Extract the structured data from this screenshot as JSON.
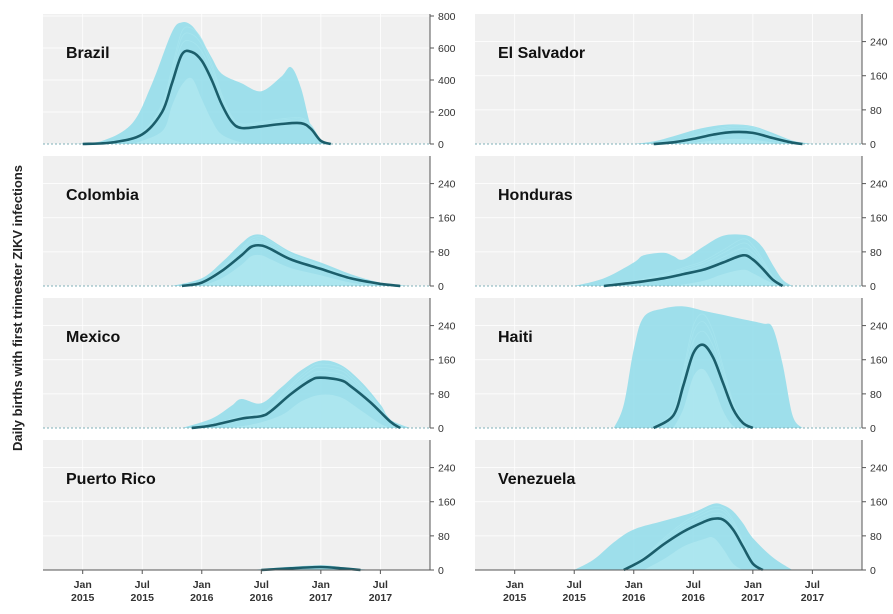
{
  "chart_data": {
    "type": "area",
    "ylabel": "Daily births with first trimester ZIKV infections",
    "x_ticks": [
      {
        "date": "2015-01",
        "line1": "Jan",
        "line2": "2015"
      },
      {
        "date": "2015-07",
        "line1": "Jul",
        "line2": "2015"
      },
      {
        "date": "2016-01",
        "line1": "Jan",
        "line2": "2016"
      },
      {
        "date": "2016-07",
        "line1": "Jul",
        "line2": "2016"
      },
      {
        "date": "2017-01",
        "line1": "Jan",
        "line2": "2017"
      },
      {
        "date": "2017-07",
        "line1": "Jul",
        "line2": "2017"
      }
    ],
    "xlim": [
      "2014-09",
      "2017-12"
    ],
    "colors": {
      "median": "#1b5e6b",
      "band": "#8fdcea",
      "inner": "#b8ebf2"
    },
    "panels": [
      {
        "title": "Brazil",
        "yticks": [
          0,
          200,
          400,
          600,
          800
        ],
        "ylim": [
          0,
          800
        ],
        "median": [
          [
            "2015-01",
            0
          ],
          [
            "2015-04",
            10
          ],
          [
            "2015-07",
            60
          ],
          [
            "2015-09",
            200
          ],
          [
            "2015-10",
            380
          ],
          [
            "2015-11",
            560
          ],
          [
            "2015-12",
            575
          ],
          [
            "2016-01",
            520
          ],
          [
            "2016-02",
            400
          ],
          [
            "2016-03",
            250
          ],
          [
            "2016-04",
            140
          ],
          [
            "2016-05",
            100
          ],
          [
            "2016-07",
            110
          ],
          [
            "2016-09",
            125
          ],
          [
            "2016-11",
            130
          ],
          [
            "2016-12",
            95
          ],
          [
            "2017-01",
            20
          ],
          [
            "2017-02",
            0
          ]
        ],
        "upper": [
          [
            "2014-12",
            0
          ],
          [
            "2015-03",
            20
          ],
          [
            "2015-06",
            130
          ],
          [
            "2015-08",
            380
          ],
          [
            "2015-10",
            700
          ],
          [
            "2015-11",
            760
          ],
          [
            "2015-12",
            740
          ],
          [
            "2016-01",
            650
          ],
          [
            "2016-02",
            540
          ],
          [
            "2016-03",
            440
          ],
          [
            "2016-05",
            380
          ],
          [
            "2016-07",
            330
          ],
          [
            "2016-09",
            420
          ],
          [
            "2016-10",
            480
          ],
          [
            "2016-11",
            350
          ],
          [
            "2016-12",
            110
          ],
          [
            "2017-01",
            10
          ],
          [
            "2017-02",
            0
          ]
        ],
        "lower": [
          [
            "2015-06",
            0
          ],
          [
            "2015-09",
            80
          ],
          [
            "2015-10",
            240
          ],
          [
            "2015-11",
            370
          ],
          [
            "2015-12",
            410
          ],
          [
            "2016-01",
            280
          ],
          [
            "2016-02",
            150
          ],
          [
            "2016-03",
            60
          ],
          [
            "2016-05",
            10
          ],
          [
            "2016-07",
            0
          ]
        ]
      },
      {
        "title": "El Salvador",
        "yticks": [
          0,
          80,
          160,
          240
        ],
        "ylim": [
          0,
          300
        ],
        "median": [
          [
            "2016-03",
            0
          ],
          [
            "2016-05",
            4
          ],
          [
            "2016-07",
            12
          ],
          [
            "2016-09",
            22
          ],
          [
            "2016-11",
            28
          ],
          [
            "2017-01",
            26
          ],
          [
            "2017-03",
            14
          ],
          [
            "2017-05",
            3
          ],
          [
            "2017-06",
            0
          ]
        ],
        "upper": [
          [
            "2016-01",
            0
          ],
          [
            "2016-03",
            6
          ],
          [
            "2016-05",
            18
          ],
          [
            "2016-07",
            32
          ],
          [
            "2016-09",
            42
          ],
          [
            "2016-11",
            46
          ],
          [
            "2017-01",
            42
          ],
          [
            "2017-03",
            26
          ],
          [
            "2017-05",
            8
          ],
          [
            "2017-07",
            0
          ]
        ],
        "lower": [
          [
            "2016-06",
            0
          ],
          [
            "2016-09",
            8
          ],
          [
            "2016-11",
            12
          ],
          [
            "2017-01",
            10
          ],
          [
            "2017-03",
            4
          ],
          [
            "2017-05",
            0
          ]
        ]
      },
      {
        "title": "Colombia",
        "yticks": [
          0,
          80,
          160,
          240
        ],
        "ylim": [
          0,
          300
        ],
        "median": [
          [
            "2015-11",
            0
          ],
          [
            "2016-01",
            8
          ],
          [
            "2016-03",
            35
          ],
          [
            "2016-05",
            72
          ],
          [
            "2016-06",
            92
          ],
          [
            "2016-07",
            95
          ],
          [
            "2016-08",
            86
          ],
          [
            "2016-10",
            62
          ],
          [
            "2017-01",
            40
          ],
          [
            "2017-04",
            18
          ],
          [
            "2017-07",
            5
          ],
          [
            "2017-09",
            0
          ]
        ],
        "upper": [
          [
            "2015-10",
            0
          ],
          [
            "2016-01",
            18
          ],
          [
            "2016-03",
            55
          ],
          [
            "2016-05",
            100
          ],
          [
            "2016-06",
            118
          ],
          [
            "2016-07",
            120
          ],
          [
            "2016-08",
            108
          ],
          [
            "2016-10",
            80
          ],
          [
            "2017-01",
            55
          ],
          [
            "2017-04",
            28
          ],
          [
            "2017-07",
            8
          ],
          [
            "2017-10",
            0
          ]
        ],
        "lower": [
          [
            "2016-01",
            0
          ],
          [
            "2016-03",
            18
          ],
          [
            "2016-05",
            50
          ],
          [
            "2016-06",
            70
          ],
          [
            "2016-07",
            72
          ],
          [
            "2016-08",
            62
          ],
          [
            "2016-10",
            42
          ],
          [
            "2017-01",
            25
          ],
          [
            "2017-04",
            8
          ],
          [
            "2017-07",
            0
          ]
        ]
      },
      {
        "title": "Honduras",
        "yticks": [
          0,
          80,
          160,
          240
        ],
        "ylim": [
          0,
          300
        ],
        "median": [
          [
            "2015-10",
            0
          ],
          [
            "2016-01",
            8
          ],
          [
            "2016-04",
            18
          ],
          [
            "2016-06",
            28
          ],
          [
            "2016-08",
            38
          ],
          [
            "2016-10",
            55
          ],
          [
            "2016-12",
            72
          ],
          [
            "2017-01",
            62
          ],
          [
            "2017-02",
            40
          ],
          [
            "2017-03",
            15
          ],
          [
            "2017-04",
            0
          ]
        ],
        "upper": [
          [
            "2015-07",
            0
          ],
          [
            "2015-10",
            18
          ],
          [
            "2016-01",
            55
          ],
          [
            "2016-02",
            72
          ],
          [
            "2016-04",
            78
          ],
          [
            "2016-05",
            70
          ],
          [
            "2016-06",
            62
          ],
          [
            "2016-08",
            92
          ],
          [
            "2016-10",
            118
          ],
          [
            "2016-12",
            120
          ],
          [
            "2017-01",
            112
          ],
          [
            "2017-02",
            90
          ],
          [
            "2017-03",
            50
          ],
          [
            "2017-04",
            15
          ],
          [
            "2017-05",
            0
          ]
        ],
        "lower": [
          [
            "2016-05",
            0
          ],
          [
            "2016-08",
            12
          ],
          [
            "2016-10",
            28
          ],
          [
            "2016-12",
            38
          ],
          [
            "2017-01",
            30
          ],
          [
            "2017-03",
            6
          ],
          [
            "2017-04",
            0
          ]
        ]
      },
      {
        "title": "Mexico",
        "yticks": [
          0,
          80,
          160,
          240
        ],
        "ylim": [
          0,
          300
        ],
        "median": [
          [
            "2015-12",
            0
          ],
          [
            "2016-02",
            6
          ],
          [
            "2016-05",
            22
          ],
          [
            "2016-07",
            28
          ],
          [
            "2016-08",
            40
          ],
          [
            "2016-10",
            80
          ],
          [
            "2016-12",
            112
          ],
          [
            "2017-01",
            118
          ],
          [
            "2017-03",
            112
          ],
          [
            "2017-04",
            98
          ],
          [
            "2017-06",
            60
          ],
          [
            "2017-08",
            15
          ],
          [
            "2017-09",
            0
          ]
        ],
        "upper": [
          [
            "2015-11",
            0
          ],
          [
            "2016-02",
            22
          ],
          [
            "2016-04",
            52
          ],
          [
            "2016-05",
            68
          ],
          [
            "2016-07",
            58
          ],
          [
            "2016-09",
            95
          ],
          [
            "2016-11",
            135
          ],
          [
            "2017-01",
            158
          ],
          [
            "2017-03",
            148
          ],
          [
            "2017-05",
            110
          ],
          [
            "2017-07",
            55
          ],
          [
            "2017-08",
            20
          ],
          [
            "2017-10",
            0
          ]
        ],
        "lower": [
          [
            "2016-03",
            0
          ],
          [
            "2016-06",
            8
          ],
          [
            "2016-09",
            30
          ],
          [
            "2016-11",
            62
          ],
          [
            "2017-01",
            78
          ],
          [
            "2017-03",
            72
          ],
          [
            "2017-05",
            42
          ],
          [
            "2017-07",
            10
          ],
          [
            "2017-08",
            0
          ]
        ]
      },
      {
        "title": "Haiti",
        "yticks": [
          0,
          80,
          160,
          240
        ],
        "ylim": [
          0,
          300
        ],
        "median": [
          [
            "2016-03",
            0
          ],
          [
            "2016-05",
            30
          ],
          [
            "2016-06",
            100
          ],
          [
            "2016-07",
            175
          ],
          [
            "2016-08",
            195
          ],
          [
            "2016-09",
            165
          ],
          [
            "2016-10",
            105
          ],
          [
            "2016-11",
            45
          ],
          [
            "2016-12",
            12
          ],
          [
            "2017-01",
            0
          ]
        ],
        "upper": [
          [
            "2015-11",
            0
          ],
          [
            "2015-12",
            55
          ],
          [
            "2016-01",
            185
          ],
          [
            "2016-02",
            260
          ],
          [
            "2016-04",
            280
          ],
          [
            "2016-06",
            285
          ],
          [
            "2016-08",
            275
          ],
          [
            "2016-10",
            265
          ],
          [
            "2016-12",
            255
          ],
          [
            "2017-02",
            245
          ],
          [
            "2017-03",
            235
          ],
          [
            "2017-04",
            150
          ],
          [
            "2017-05",
            30
          ],
          [
            "2017-06",
            0
          ]
        ],
        "lower": [
          [
            "2016-05",
            0
          ],
          [
            "2016-06",
            45
          ],
          [
            "2016-07",
            120
          ],
          [
            "2016-08",
            138
          ],
          [
            "2016-09",
            100
          ],
          [
            "2016-10",
            40
          ],
          [
            "2016-11",
            5
          ],
          [
            "2016-12",
            0
          ]
        ]
      },
      {
        "title": "Puerto Rico",
        "yticks": [
          0,
          80,
          160,
          240
        ],
        "ylim": [
          0,
          300
        ],
        "median": [
          [
            "2016-07",
            0
          ],
          [
            "2016-10",
            4
          ],
          [
            "2017-01",
            7
          ],
          [
            "2017-03",
            4
          ],
          [
            "2017-05",
            0
          ]
        ],
        "upper": [
          [
            "2016-06",
            0
          ],
          [
            "2016-09",
            6
          ],
          [
            "2017-01",
            11
          ],
          [
            "2017-03",
            7
          ],
          [
            "2017-06",
            0
          ]
        ],
        "lower": [
          [
            "2016-09",
            0
          ],
          [
            "2017-01",
            3
          ],
          [
            "2017-04",
            0
          ]
        ]
      },
      {
        "title": "Venezuela",
        "yticks": [
          0,
          80,
          160,
          240
        ],
        "ylim": [
          0,
          300
        ],
        "median": [
          [
            "2015-12",
            0
          ],
          [
            "2016-02",
            25
          ],
          [
            "2016-04",
            60
          ],
          [
            "2016-06",
            90
          ],
          [
            "2016-08",
            112
          ],
          [
            "2016-09",
            120
          ],
          [
            "2016-10",
            118
          ],
          [
            "2016-11",
            95
          ],
          [
            "2016-12",
            55
          ],
          [
            "2017-01",
            15
          ],
          [
            "2017-02",
            0
          ]
        ],
        "upper": [
          [
            "2015-07",
            0
          ],
          [
            "2015-09",
            25
          ],
          [
            "2015-11",
            65
          ],
          [
            "2016-01",
            95
          ],
          [
            "2016-04",
            115
          ],
          [
            "2016-07",
            135
          ],
          [
            "2016-09",
            155
          ],
          [
            "2016-10",
            152
          ],
          [
            "2016-11",
            138
          ],
          [
            "2016-12",
            110
          ],
          [
            "2017-01",
            75
          ],
          [
            "2017-03",
            30
          ],
          [
            "2017-05",
            0
          ]
        ],
        "lower": [
          [
            "2016-02",
            0
          ],
          [
            "2016-04",
            25
          ],
          [
            "2016-06",
            55
          ],
          [
            "2016-08",
            72
          ],
          [
            "2016-09",
            76
          ],
          [
            "2016-10",
            50
          ],
          [
            "2016-11",
            15
          ],
          [
            "2016-12",
            0
          ]
        ]
      }
    ]
  }
}
